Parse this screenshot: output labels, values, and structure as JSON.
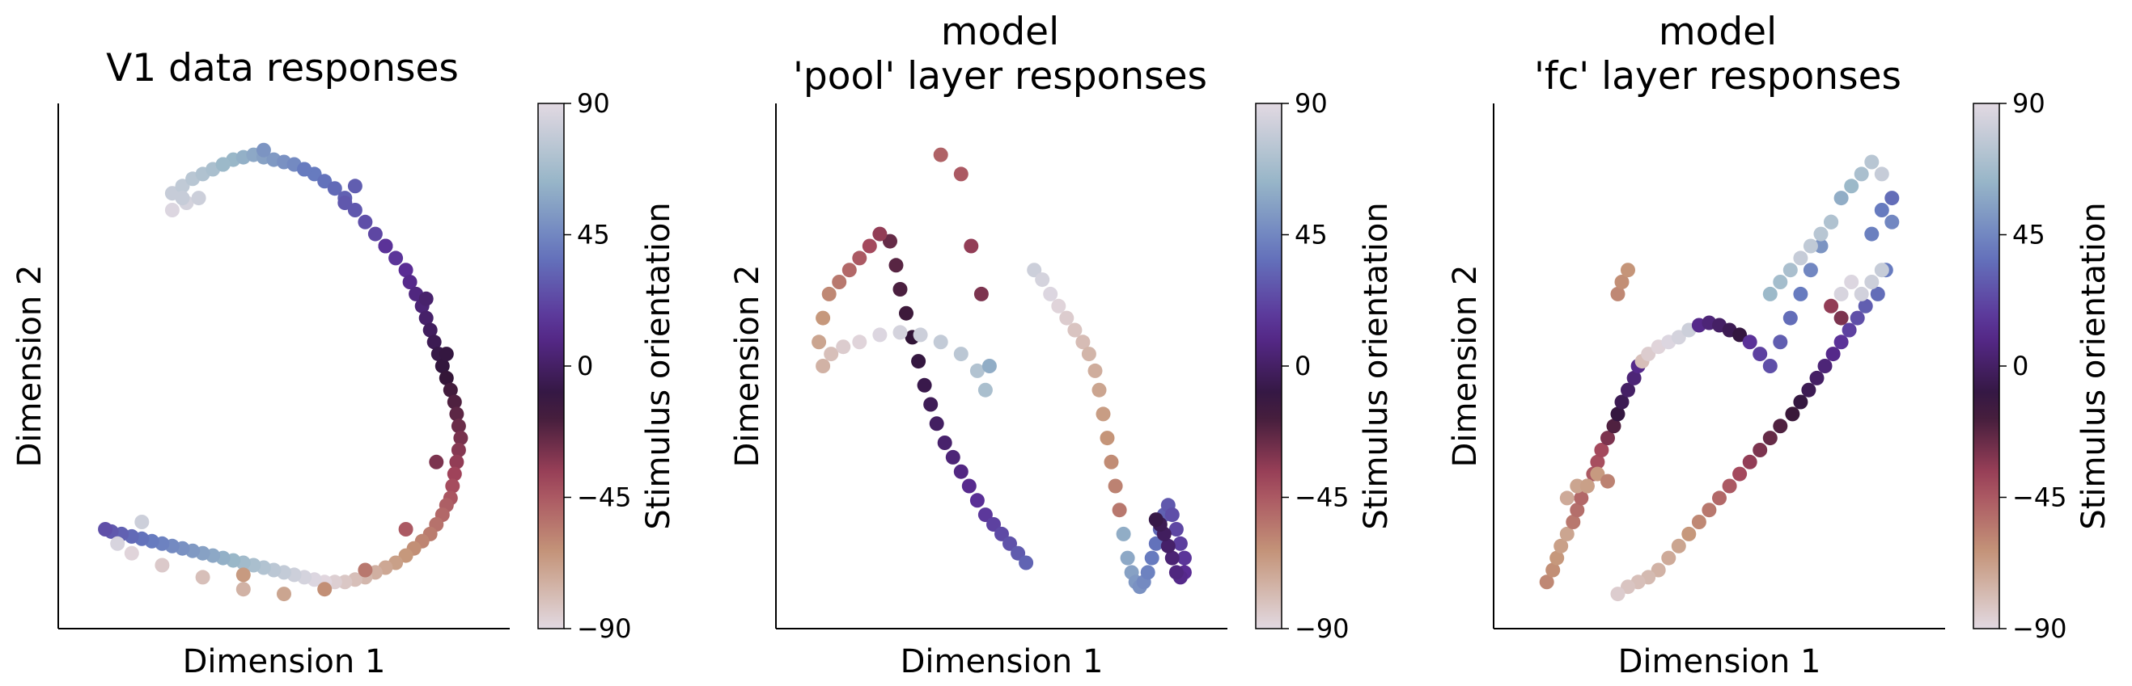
{
  "figure": {
    "colorbar_ticks": [
      "90",
      "45",
      "0",
      "−45",
      "−90"
    ],
    "colormap": "twilight_shifted",
    "colormap_stops": [
      "#e2d9e2",
      "#c59679",
      "#a2445b",
      "#2f1436",
      "#5a2c94",
      "#6477be",
      "#9ab8c8",
      "#e2d9e2"
    ]
  },
  "chart_data": [
    {
      "type": "scatter",
      "title_lines": [
        "V1 data responses"
      ],
      "xlabel": "Dimension 1",
      "ylabel": "Dimension 2",
      "colorbar_label": "Stimulus orientation",
      "colorbar_range": [
        -90,
        90
      ],
      "axis_ticks": "none",
      "grid": false,
      "points": {
        "x": [
          -0.55,
          -0.48,
          -0.42,
          -0.55,
          -0.5,
          -0.45,
          -0.4,
          -0.35,
          -0.3,
          -0.25,
          -0.2,
          -0.15,
          -0.1,
          -0.05,
          0.0,
          0.05,
          0.1,
          0.15,
          0.2,
          0.25,
          0.3,
          0.35,
          0.4,
          0.45,
          0.5,
          0.55,
          0.6,
          0.62,
          0.65,
          0.68,
          0.7,
          0.72,
          0.74,
          0.76,
          0.78,
          0.8,
          0.82,
          0.84,
          0.85,
          0.86,
          0.87,
          0.86,
          0.85,
          0.84,
          0.83,
          0.82,
          0.8,
          0.78,
          0.75,
          0.72,
          0.68,
          0.64,
          0.6,
          0.55,
          0.5,
          0.45,
          0.4,
          0.35,
          0.3,
          0.25,
          0.2,
          0.15,
          0.1,
          0.05,
          0.0,
          -0.05,
          -0.1,
          -0.15,
          -0.2,
          -0.25,
          -0.3,
          -0.35,
          -0.4,
          -0.45,
          -0.5,
          -0.55,
          -0.6,
          -0.65,
          -0.7,
          -0.75,
          -0.8,
          -0.85,
          -0.88,
          -0.5,
          -0.3,
          -0.1,
          0.1,
          0.3,
          0.5,
          0.7,
          0.8,
          0.75,
          0.6,
          0.4,
          0.2,
          0.0,
          -0.2,
          -0.4,
          -0.6,
          -0.75,
          -0.82,
          -0.7,
          -0.2,
          0.35
        ],
        "y": [
          0.65,
          0.68,
          0.7,
          0.72,
          0.75,
          0.78,
          0.8,
          0.82,
          0.84,
          0.86,
          0.87,
          0.88,
          0.87,
          0.86,
          0.85,
          0.84,
          0.82,
          0.8,
          0.77,
          0.74,
          0.7,
          0.65,
          0.6,
          0.55,
          0.5,
          0.45,
          0.4,
          0.35,
          0.3,
          0.25,
          0.2,
          0.15,
          0.1,
          0.05,
          0.0,
          -0.05,
          -0.1,
          -0.15,
          -0.2,
          -0.25,
          -0.3,
          -0.35,
          -0.4,
          -0.45,
          -0.5,
          -0.55,
          -0.58,
          -0.62,
          -0.66,
          -0.7,
          -0.73,
          -0.76,
          -0.79,
          -0.82,
          -0.84,
          -0.86,
          -0.88,
          -0.89,
          -0.9,
          -0.9,
          -0.9,
          -0.89,
          -0.88,
          -0.87,
          -0.86,
          -0.85,
          -0.84,
          -0.83,
          -0.82,
          -0.81,
          -0.8,
          -0.79,
          -0.78,
          -0.77,
          -0.76,
          -0.75,
          -0.74,
          -0.73,
          -0.72,
          -0.71,
          -0.7,
          -0.69,
          -0.68,
          0.7,
          0.84,
          0.9,
          0.82,
          0.68,
          0.5,
          0.28,
          0.05,
          -0.4,
          -0.68,
          -0.85,
          -0.93,
          -0.95,
          -0.93,
          -0.88,
          -0.83,
          -0.78,
          -0.74,
          -0.65,
          -0.87,
          0.75
        ],
        "orientation": [
          88,
          85,
          82,
          80,
          78,
          75,
          72,
          70,
          67,
          64,
          61,
          58,
          55,
          52,
          49,
          46,
          43,
          40,
          37,
          34,
          31,
          28,
          25,
          22,
          19,
          16,
          13,
          10,
          7,
          4,
          1,
          -2,
          -5,
          -8,
          -11,
          -14,
          -17,
          -20,
          -23,
          -26,
          -29,
          -32,
          -35,
          -38,
          -41,
          -44,
          -47,
          -50,
          -53,
          -56,
          -59,
          -62,
          -65,
          -68,
          -71,
          -74,
          -77,
          -80,
          -83,
          -86,
          -89,
          88,
          85,
          82,
          79,
          76,
          73,
          70,
          67,
          64,
          61,
          58,
          55,
          52,
          49,
          46,
          43,
          40,
          37,
          34,
          31,
          28,
          25,
          80,
          65,
          50,
          40,
          28,
          15,
          2,
          -10,
          -30,
          -45,
          -55,
          -62,
          -70,
          -75,
          -80,
          -84,
          -88,
          86,
          82,
          -66,
          30
        ]
      }
    },
    {
      "type": "scatter",
      "title_lines": [
        "model",
        "'pool' layer responses"
      ],
      "xlabel": "Dimension 1",
      "ylabel": "Dimension 2",
      "colorbar_label": "Stimulus orientation",
      "colorbar_range": [
        -90,
        90
      ],
      "axis_ticks": "none",
      "grid": false,
      "points": {
        "x": [
          -0.55,
          -0.52,
          -0.5,
          -0.47,
          -0.44,
          -0.41,
          -0.38,
          -0.35,
          -0.32,
          -0.28,
          -0.24,
          -0.2,
          -0.16,
          -0.12,
          -0.08,
          -0.04,
          0.0,
          0.04,
          0.08,
          0.12,
          0.16,
          0.2,
          0.24,
          0.28,
          0.32,
          0.36,
          0.4,
          0.43,
          0.46,
          0.48,
          0.5,
          0.52,
          0.54,
          0.56,
          0.58,
          0.6,
          0.62,
          0.64,
          0.66,
          0.68,
          0.7,
          0.72,
          0.74,
          0.76,
          0.78,
          0.8,
          0.82,
          0.84,
          0.86,
          0.88,
          0.9,
          0.9,
          0.88,
          0.86,
          0.84,
          0.82,
          0.8,
          0.78,
          0.76,
          -0.6,
          -0.65,
          -0.7,
          -0.75,
          -0.8,
          -0.85,
          -0.88,
          -0.9,
          -0.88,
          -0.84,
          -0.78,
          -0.7,
          -0.6,
          -0.5,
          -0.4,
          -0.3,
          -0.2,
          -0.12,
          -0.08,
          -0.06,
          -0.1,
          -0.15,
          -0.2,
          -0.3
        ],
        "y": [
          0.52,
          0.42,
          0.32,
          0.22,
          0.12,
          0.02,
          -0.08,
          -0.16,
          -0.24,
          -0.32,
          -0.38,
          -0.44,
          -0.5,
          -0.56,
          -0.62,
          -0.66,
          -0.7,
          -0.74,
          -0.78,
          -0.82,
          0.4,
          0.36,
          0.3,
          0.25,
          0.2,
          0.15,
          0.1,
          0.05,
          -0.02,
          -0.1,
          -0.2,
          -0.3,
          -0.4,
          -0.5,
          -0.6,
          -0.7,
          -0.8,
          -0.86,
          -0.9,
          -0.92,
          -0.9,
          -0.86,
          -0.8,
          -0.74,
          -0.68,
          -0.62,
          -0.58,
          -0.62,
          -0.68,
          -0.74,
          -0.8,
          -0.86,
          -0.88,
          -0.86,
          -0.8,
          -0.75,
          -0.7,
          -0.66,
          -0.64,
          0.55,
          0.5,
          0.45,
          0.4,
          0.35,
          0.3,
          0.2,
          0.1,
          0.0,
          0.05,
          0.08,
          0.1,
          0.13,
          0.14,
          0.13,
          0.1,
          0.05,
          -0.02,
          -0.1,
          0.0,
          0.3,
          0.5,
          0.8,
          0.88
        ],
        "orientation": [
          -25,
          -22,
          -19,
          -16,
          -13,
          -10,
          -7,
          -4,
          -1,
          2,
          5,
          8,
          11,
          14,
          17,
          20,
          23,
          26,
          29,
          32,
          82,
          85,
          88,
          -88,
          -85,
          -82,
          -79,
          -76,
          -73,
          -70,
          -67,
          -64,
          -61,
          -58,
          -55,
          60,
          58,
          55,
          52,
          49,
          46,
          43,
          40,
          37,
          34,
          31,
          28,
          25,
          22,
          19,
          16,
          13,
          10,
          7,
          4,
          1,
          -2,
          -5,
          -8,
          -35,
          -40,
          -45,
          -50,
          -55,
          -60,
          -65,
          -70,
          -75,
          -80,
          -85,
          -88,
          88,
          85,
          82,
          79,
          76,
          73,
          70,
          60,
          -30,
          -35,
          -45,
          -48
        ]
      }
    },
    {
      "type": "scatter",
      "title_lines": [
        "model",
        "'fc' layer responses"
      ],
      "xlabel": "Dimension 1",
      "ylabel": "Dimension 2",
      "colorbar_label": "Stimulus orientation",
      "colorbar_range": [
        -90,
        90
      ],
      "axis_ticks": "none",
      "grid": false,
      "points": {
        "x": [
          -0.85,
          -0.82,
          -0.8,
          -0.78,
          -0.75,
          -0.72,
          -0.7,
          -0.68,
          -0.65,
          -0.62,
          -0.6,
          -0.58,
          -0.55,
          -0.52,
          -0.5,
          -0.48,
          -0.45,
          -0.42,
          -0.4,
          -0.38,
          -0.35,
          -0.3,
          -0.25,
          -0.2,
          -0.15,
          -0.1,
          -0.05,
          0.0,
          0.05,
          0.1,
          0.15,
          0.2,
          0.25,
          0.3,
          0.35,
          0.4,
          0.45,
          0.5,
          0.55,
          0.6,
          0.65,
          0.7,
          0.75,
          0.8,
          0.85,
          0.82,
          0.78,
          0.72,
          0.68,
          0.64,
          0.6,
          0.56,
          0.52,
          0.48,
          0.44,
          0.4,
          0.36,
          0.3,
          0.25,
          0.2,
          0.15,
          0.1,
          0.05,
          0.0,
          -0.05,
          -0.1,
          -0.15,
          -0.2,
          -0.25,
          -0.3,
          -0.35,
          -0.4,
          -0.45,
          -0.5,
          0.4,
          0.45,
          0.5,
          0.55,
          0.35,
          0.3,
          0.25,
          -0.5,
          -0.48,
          -0.45,
          -0.7,
          -0.75,
          -0.6,
          -0.65,
          -0.55,
          0.85,
          0.8,
          0.75,
          0.65,
          0.6,
          0.7,
          0.75,
          0.8,
          0.6,
          0.55
        ],
        "y": [
          -0.9,
          -0.85,
          -0.8,
          -0.75,
          -0.7,
          -0.65,
          -0.6,
          -0.55,
          -0.5,
          -0.45,
          -0.4,
          -0.35,
          -0.3,
          -0.25,
          -0.2,
          -0.15,
          -0.1,
          -0.05,
          0.0,
          0.02,
          0.05,
          0.08,
          0.1,
          0.12,
          0.15,
          0.17,
          0.18,
          0.17,
          0.15,
          0.13,
          0.1,
          0.05,
          0.0,
          0.1,
          0.2,
          0.3,
          0.4,
          0.5,
          0.6,
          0.7,
          0.75,
          0.8,
          0.85,
          0.8,
          0.6,
          0.4,
          0.3,
          0.25,
          0.2,
          0.15,
          0.1,
          0.05,
          0.0,
          -0.05,
          -0.1,
          -0.15,
          -0.2,
          -0.25,
          -0.3,
          -0.35,
          -0.4,
          -0.45,
          -0.5,
          -0.55,
          -0.6,
          -0.65,
          -0.7,
          -0.75,
          -0.8,
          -0.85,
          -0.88,
          -0.9,
          -0.92,
          -0.95,
          0.45,
          0.5,
          0.55,
          0.6,
          0.4,
          0.35,
          0.3,
          0.3,
          0.35,
          0.4,
          -0.5,
          -0.55,
          -0.45,
          -0.5,
          -0.48,
          0.7,
          0.65,
          0.55,
          0.35,
          0.3,
          0.3,
          0.35,
          0.4,
          0.2,
          0.25
        ],
        "orientation": [
          -60,
          -62,
          -65,
          -68,
          -70,
          -55,
          -52,
          -50,
          -48,
          -45,
          -42,
          -40,
          -30,
          -20,
          -10,
          -5,
          0,
          5,
          10,
          -80,
          -85,
          -88,
          88,
          85,
          82,
          10,
          5,
          0,
          -5,
          -10,
          15,
          20,
          25,
          30,
          35,
          40,
          45,
          50,
          55,
          60,
          65,
          70,
          75,
          80,
          45,
          40,
          35,
          30,
          25,
          20,
          15,
          10,
          5,
          0,
          -5,
          -10,
          -15,
          -20,
          -25,
          -30,
          -35,
          -40,
          -45,
          -50,
          -55,
          -60,
          -65,
          -70,
          -72,
          -75,
          -78,
          -80,
          -82,
          -85,
          80,
          78,
          75,
          72,
          70,
          68,
          65,
          -60,
          -62,
          -64,
          -70,
          -72,
          -66,
          -68,
          -58,
          35,
          40,
          42,
          88,
          86,
          84,
          82,
          80,
          -30,
          -35
        ]
      }
    }
  ]
}
